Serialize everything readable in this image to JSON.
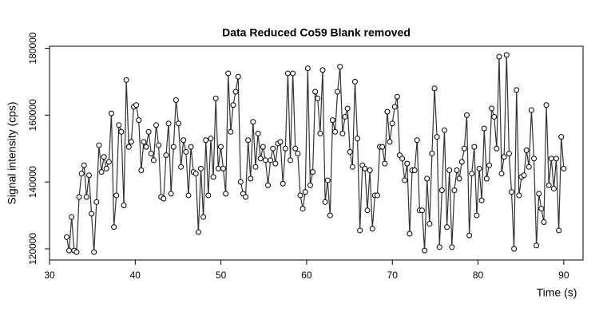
{
  "chart_data": {
    "type": "line",
    "title": "Data Reduced Co59 Blank removed",
    "x_label": "Time (s)",
    "y_label": "Signal intensity (cps)",
    "color": "#333333",
    "markers": true,
    "xlim": [
      30,
      92.25
    ],
    "ylim": [
      116660,
      180600
    ],
    "xticks": [
      30,
      40,
      50,
      60,
      70,
      80,
      90
    ],
    "yticks": [
      120000,
      140000,
      160000,
      180000
    ],
    "x": [
      32,
      32.29,
      32.58,
      32.87,
      33.16,
      33.45,
      33.74,
      34.03,
      34.32,
      34.61,
      34.9,
      35.19,
      35.48,
      35.77,
      36.06,
      36.35,
      36.64,
      36.93,
      37.22,
      37.51,
      37.8,
      38.09,
      38.38,
      38.67,
      38.96,
      39.25,
      39.54,
      39.83,
      40.12,
      40.41,
      40.7,
      40.99,
      41.28,
      41.57,
      41.86,
      42.15,
      42.44,
      42.73,
      43.02,
      43.31,
      43.6,
      43.89,
      44.18,
      44.47,
      44.76,
      45.05,
      45.34,
      45.63,
      45.92,
      46.21,
      46.5,
      46.79,
      47.08,
      47.37,
      47.66,
      47.95,
      48.24,
      48.53,
      48.82,
      49.11,
      49.4,
      49.69,
      49.98,
      50.27,
      50.56,
      50.85,
      51.14,
      51.43,
      51.72,
      52.01,
      52.3,
      52.59,
      52.88,
      53.17,
      53.46,
      53.75,
      54.04,
      54.33,
      54.62,
      54.91,
      55.2,
      55.49,
      55.78,
      56.07,
      56.36,
      56.65,
      56.94,
      57.23,
      57.52,
      57.81,
      58.1,
      58.39,
      58.68,
      58.97,
      59.26,
      59.55,
      59.84,
      60.13,
      60.42,
      60.71,
      61,
      61.29,
      61.58,
      61.87,
      62.16,
      62.45,
      62.74,
      63.03,
      63.32,
      63.61,
      63.9,
      64.19,
      64.48,
      64.77,
      65.06,
      65.35,
      65.64,
      65.93,
      66.22,
      66.51,
      66.8,
      67.09,
      67.38,
      67.67,
      67.96,
      68.25,
      68.54,
      68.83,
      69.12,
      69.41,
      69.7,
      69.99,
      70.28,
      70.57,
      70.86,
      71.15,
      71.44,
      71.73,
      72.02,
      72.31,
      72.6,
      72.89,
      73.18,
      73.47,
      73.76,
      74.05,
      74.34,
      74.63,
      74.92,
      75.21,
      75.5,
      75.79,
      76.08,
      76.37,
      76.66,
      76.95,
      77.24,
      77.53,
      77.82,
      78.11,
      78.4,
      78.69,
      78.98,
      79.27,
      79.56,
      79.85,
      80.14,
      80.43,
      80.72,
      81.01,
      81.3,
      81.59,
      81.88,
      82.17,
      82.46,
      82.75,
      83.04,
      83.33,
      83.62,
      83.91,
      84.2,
      84.49,
      84.78,
      85.07,
      85.36,
      85.65,
      85.94,
      86.23,
      86.52,
      86.81,
      87.1,
      87.39,
      87.68,
      87.97,
      88.26,
      88.55,
      88.84,
      89.13,
      89.42,
      89.71,
      90
    ],
    "values": [
      123500,
      119500,
      129500,
      119500,
      119000,
      135500,
      142500,
      145000,
      135500,
      142000,
      130500,
      119000,
      134000,
      151000,
      143000,
      147500,
      144000,
      146000,
      160500,
      126500,
      136000,
      157000,
      155000,
      133000,
      170500,
      150500,
      152000,
      162500,
      163000,
      158500,
      143500,
      152000,
      150500,
      155000,
      148500,
      146500,
      157000,
      151000,
      135500,
      135000,
      148000,
      157500,
      136500,
      150500,
      164500,
      157500,
      144500,
      152500,
      149000,
      136000,
      150500,
      143000,
      142500,
      125000,
      144000,
      129500,
      152500,
      136000,
      153000,
      141500,
      165000,
      144000,
      150500,
      144000,
      136500,
      172500,
      155000,
      163000,
      167000,
      171500,
      140000,
      136500,
      135500,
      152500,
      141000,
      158000,
      144500,
      154500,
      147000,
      150500,
      146500,
      139000,
      146500,
      150000,
      145500,
      151500,
      152000,
      139500,
      150000,
      172500,
      146500,
      172500,
      150000,
      148500,
      136000,
      132000,
      137000,
      174000,
      139000,
      143000,
      167000,
      165000,
      154500,
      173500,
      134000,
      140500,
      130000,
      158500,
      155000,
      167000,
      174500,
      154500,
      159500,
      162000,
      149000,
      144500,
      170000,
      153000,
      125500,
      145000,
      144000,
      131500,
      143500,
      126000,
      136000,
      136000,
      150500,
      150500,
      145500,
      161000,
      152000,
      157500,
      162500,
      165500,
      148000,
      147000,
      140500,
      145500,
      124500,
      143500,
      143500,
      152500,
      131500,
      131500,
      119500,
      141000,
      127500,
      148500,
      168000,
      153500,
      120500,
      137500,
      155500,
      126500,
      143500,
      120500,
      137500,
      143500,
      141000,
      146000,
      150000,
      160000,
      124000,
      142500,
      150500,
      130000,
      144000,
      134500,
      156000,
      141000,
      145000,
      162000,
      159500,
      150000,
      177500,
      142500,
      147500,
      178000,
      148500,
      137000,
      120000,
      167500,
      136000,
      141500,
      142000,
      149500,
      144500,
      161500,
      147000,
      121000,
      136500,
      132000,
      128000,
      163000,
      139000,
      147000,
      138000,
      147000,
      125500,
      153500,
      144000
    ]
  }
}
